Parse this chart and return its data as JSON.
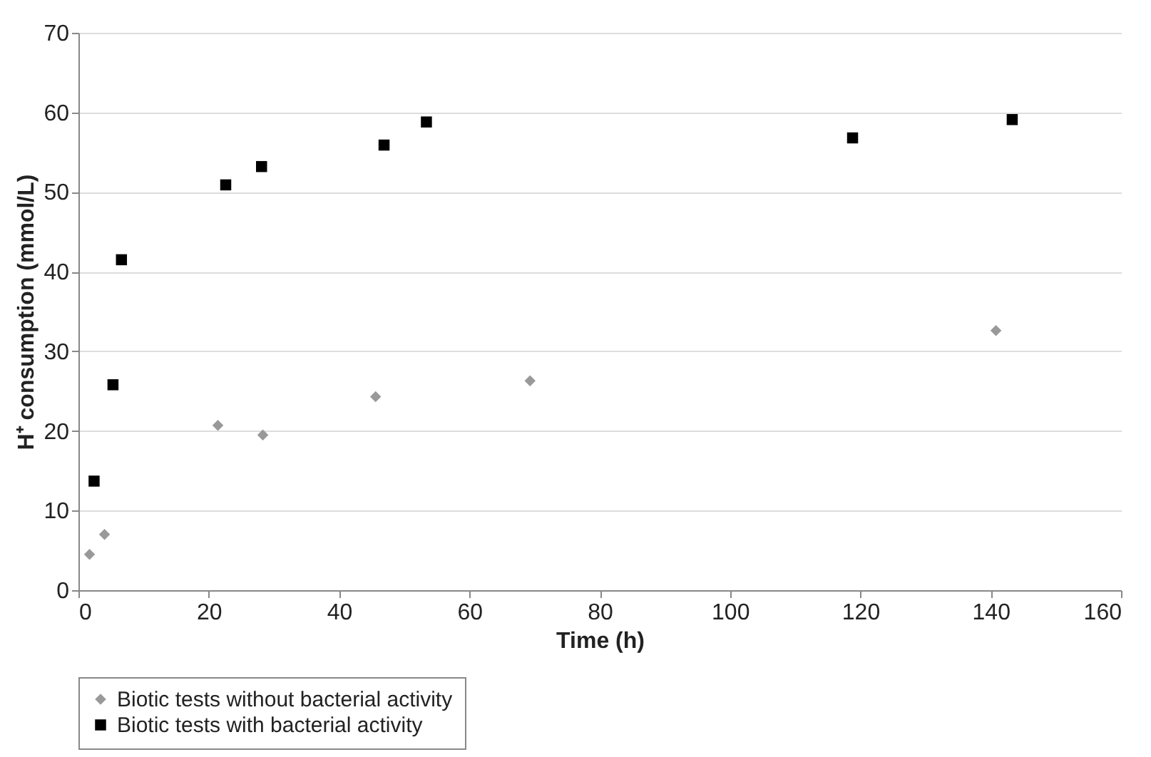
{
  "chart_data": {
    "type": "scatter",
    "xlabel": "Time (h)",
    "ylabel": "H⁺ consumption (mmol/L)",
    "xlim": [
      0,
      160
    ],
    "xticks": [
      0,
      20,
      40,
      60,
      80,
      100,
      120,
      140,
      160
    ],
    "ylim": [
      0,
      70
    ],
    "yticks": [
      0,
      10,
      20,
      30,
      40,
      50,
      60,
      70
    ],
    "grid": "y",
    "legend": "bottom",
    "series": [
      {
        "name": "Biotic tests without bacterial activity",
        "color": "#999999",
        "marker": "diamond",
        "x": [
          1.7,
          4.0,
          21.4,
          28.3,
          45.6,
          69.3,
          140.8
        ],
        "values": [
          4.5,
          7.0,
          20.7,
          19.5,
          24.3,
          26.3,
          32.6
        ]
      },
      {
        "name": "Biotic tests with bacterial activity",
        "color": "#000000",
        "marker": "square",
        "x": [
          2.4,
          5.3,
          6.6,
          22.6,
          28.1,
          46.9,
          53.4,
          118.8,
          143.3
        ],
        "values": [
          13.7,
          25.8,
          41.5,
          50.9,
          53.2,
          55.9,
          58.8,
          56.8,
          59.1
        ]
      }
    ]
  }
}
